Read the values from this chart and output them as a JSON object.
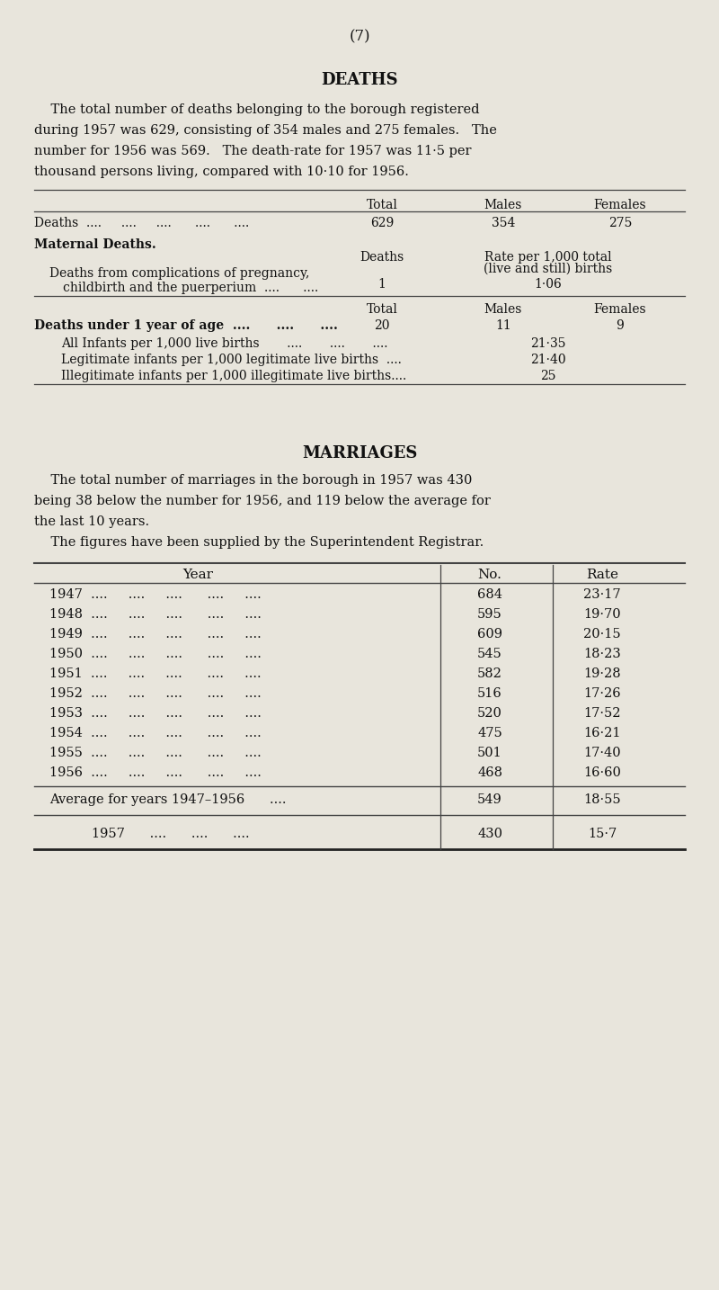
{
  "page_number": "(7)",
  "bg_color": "#e8e5dc",
  "text_color": "#111111",
  "deaths_title": "DEATHS",
  "deaths_lines": [
    "    The total number of deaths belonging to the borough registered",
    "during 1957 was 629, consisting of 354 males and 275 females.   The",
    "number for 1956 was 569.   The death-rate for 1957 was 11·5 per",
    "thousand persons living, compared with 10·10 for 1956."
  ],
  "marriages_title": "MARRIAGES",
  "marriages_lines": [
    "    The total number of marriages in the borough in 1957 was 430",
    "being 38 below the number for 1956, and 119 below the average for",
    "the last 10 years."
  ],
  "marriages_line2": "    The figures have been supplied by the Superintendent Registrar.",
  "marriages_years": [
    "1947",
    "1948",
    "1949",
    "1950",
    "1951",
    "1952",
    "1953",
    "1954",
    "1955",
    "1956"
  ],
  "marriages_nos": [
    "684",
    "595",
    "609",
    "545",
    "582",
    "516",
    "520",
    "475",
    "501",
    "468"
  ],
  "marriages_rates": [
    "23·17",
    "19·70",
    "20·15",
    "18·23",
    "19·28",
    "17·26",
    "17·52",
    "16·21",
    "17·40",
    "16·60"
  ],
  "marriages_avg_no": "549",
  "marriages_avg_rate": "18·55",
  "marriages_1957_no": "430",
  "marriages_1957_rate": "15·7"
}
